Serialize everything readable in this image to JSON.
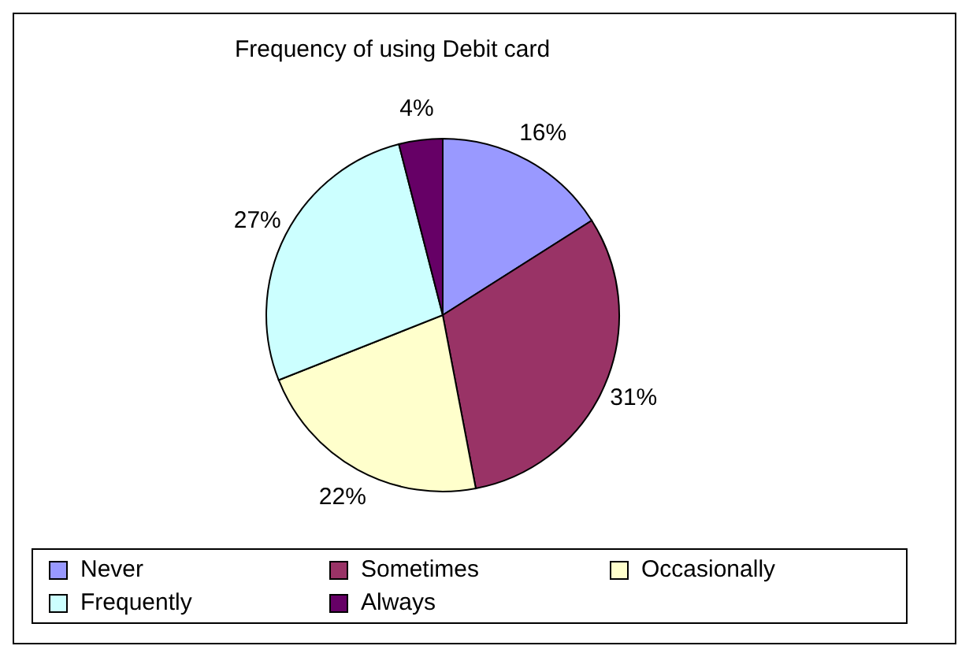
{
  "chart_data": {
    "type": "pie",
    "title": "Frequency of using Debit card",
    "categories": [
      "Never",
      "Sometimes",
      "Occasionally",
      "Frequently",
      "Always"
    ],
    "values": [
      16,
      31,
      22,
      27,
      4
    ],
    "value_labels": [
      "16%",
      "31%",
      "22%",
      "27%",
      "4%"
    ],
    "colors": [
      "#9999ff",
      "#993366",
      "#ffffcc",
      "#ccffff",
      "#660066"
    ],
    "legend": "bottom"
  }
}
